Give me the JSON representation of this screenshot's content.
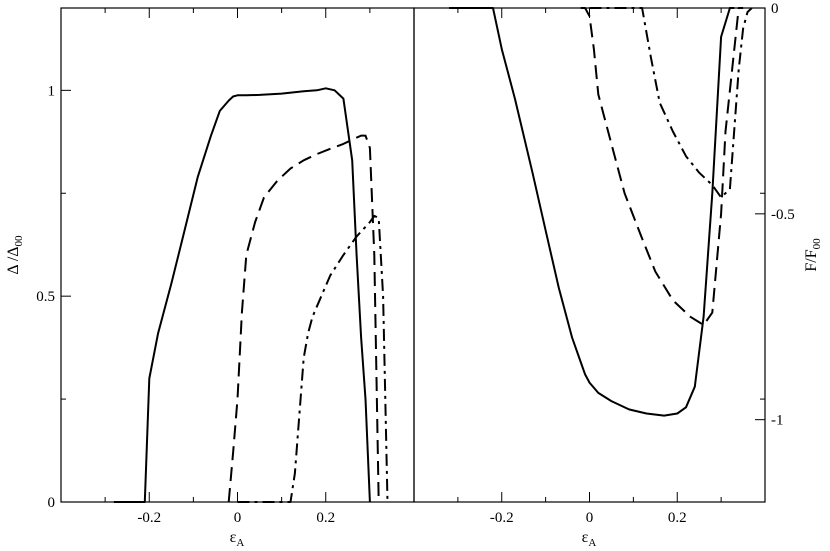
{
  "chart_data": [
    {
      "type": "line",
      "panel": "left",
      "xlabel": "ε",
      "xlabel_sub": "A",
      "ylabel": "Δ /Δ",
      "ylabel_sub": "00",
      "xlim": [
        -0.4,
        0.4
      ],
      "ylim": [
        0,
        1.2
      ],
      "x_ticks": [
        -0.2,
        0,
        0.2
      ],
      "x_tick_labels": [
        "-0.2",
        "0",
        "0.2"
      ],
      "y_ticks": [
        0,
        0.5,
        1
      ],
      "y_tick_labels": [
        "0",
        "0.5",
        "1"
      ],
      "series": [
        {
          "style": "solid",
          "x": [
            -0.28,
            -0.21,
            -0.2,
            -0.18,
            -0.15,
            -0.12,
            -0.09,
            -0.06,
            -0.04,
            -0.02,
            -0.01,
            0.0,
            0.02,
            0.05,
            0.1,
            0.15,
            0.18,
            0.2,
            0.22,
            0.24,
            0.26,
            0.27,
            0.28,
            0.29,
            0.3
          ],
          "y": [
            0.0,
            0.0,
            0.3,
            0.41,
            0.53,
            0.66,
            0.79,
            0.89,
            0.95,
            0.975,
            0.985,
            0.988,
            0.988,
            0.989,
            0.992,
            0.998,
            1.0,
            1.005,
            1.0,
            0.98,
            0.83,
            0.6,
            0.4,
            0.25,
            0.0
          ]
        },
        {
          "style": "dashed",
          "x": [
            -0.02,
            -0.01,
            0.0,
            0.01,
            0.02,
            0.04,
            0.06,
            0.09,
            0.12,
            0.15,
            0.18,
            0.21,
            0.24,
            0.26,
            0.28,
            0.29,
            0.3,
            0.31,
            0.32
          ],
          "y": [
            0.0,
            0.12,
            0.25,
            0.46,
            0.6,
            0.68,
            0.74,
            0.78,
            0.81,
            0.83,
            0.845,
            0.858,
            0.87,
            0.88,
            0.89,
            0.89,
            0.86,
            0.6,
            0.0
          ]
        },
        {
          "style": "dash-dot",
          "x": [
            0.0,
            0.04,
            0.08,
            0.12,
            0.13,
            0.14,
            0.15,
            0.16,
            0.17,
            0.19,
            0.21,
            0.24,
            0.27,
            0.3,
            0.31,
            0.32,
            0.33,
            0.34
          ],
          "y": [
            0.0,
            0.0,
            0.0,
            0.0,
            0.07,
            0.21,
            0.35,
            0.41,
            0.45,
            0.5,
            0.55,
            0.6,
            0.645,
            0.68,
            0.695,
            0.69,
            0.5,
            0.0
          ]
        }
      ]
    },
    {
      "type": "line",
      "panel": "right",
      "xlabel": "ε",
      "xlabel_sub": "A",
      "ylabel": "F/F",
      "ylabel_sub": "00",
      "xlim": [
        -0.4,
        0.4
      ],
      "ylim": [
        -1.2,
        0
      ],
      "x_ticks": [
        -0.2,
        0,
        0.2
      ],
      "x_tick_labels": [
        "-0.2",
        "0",
        "0.2"
      ],
      "y_ticks": [
        0,
        -0.5,
        -1
      ],
      "y_tick_labels": [
        "0",
        "-0.5",
        "-1"
      ],
      "series": [
        {
          "style": "solid",
          "x": [
            -0.32,
            -0.22,
            -0.2,
            -0.17,
            -0.13,
            -0.1,
            -0.07,
            -0.04,
            -0.02,
            -0.01,
            0.0,
            0.02,
            0.05,
            0.09,
            0.13,
            0.17,
            0.2,
            0.22,
            0.24,
            0.26,
            0.28,
            0.3,
            0.32,
            0.33
          ],
          "y": [
            0.0,
            0.0,
            -0.1,
            -0.22,
            -0.4,
            -0.54,
            -0.68,
            -0.8,
            -0.86,
            -0.89,
            -0.91,
            -0.935,
            -0.955,
            -0.975,
            -0.985,
            -0.99,
            -0.985,
            -0.97,
            -0.92,
            -0.75,
            -0.45,
            -0.07,
            0.0,
            0.0
          ]
        },
        {
          "style": "dashed",
          "x": [
            -0.02,
            -0.01,
            0.0,
            0.01,
            0.02,
            0.05,
            0.08,
            0.12,
            0.15,
            0.19,
            0.23,
            0.26,
            0.28,
            0.3,
            0.31,
            0.33,
            0.34,
            0.35
          ],
          "y": [
            0.0,
            0.0,
            -0.02,
            -0.1,
            -0.21,
            -0.33,
            -0.45,
            -0.56,
            -0.64,
            -0.71,
            -0.75,
            -0.77,
            -0.74,
            -0.5,
            -0.3,
            -0.1,
            0.0,
            0.0
          ]
        },
        {
          "style": "dash-dot",
          "x": [
            0.0,
            0.05,
            0.1,
            0.12,
            0.14,
            0.16,
            0.19,
            0.22,
            0.25,
            0.28,
            0.3,
            0.32,
            0.34,
            0.35,
            0.36,
            0.37
          ],
          "y": [
            0.0,
            0.0,
            0.0,
            0.0,
            -0.12,
            -0.23,
            -0.3,
            -0.36,
            -0.4,
            -0.43,
            -0.46,
            -0.44,
            -0.15,
            -0.05,
            -0.01,
            0.0
          ]
        }
      ]
    }
  ]
}
